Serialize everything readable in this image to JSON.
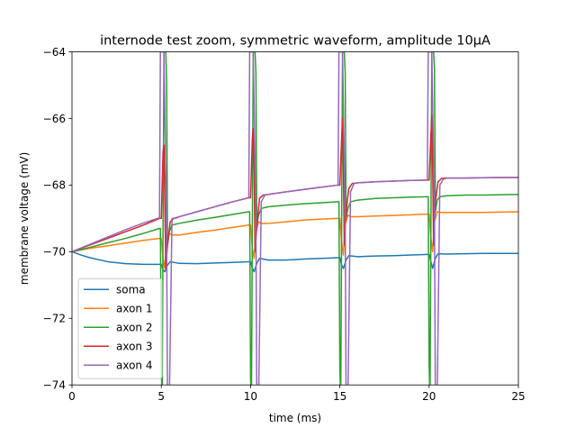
{
  "chart_data": {
    "type": "line",
    "title": "internode test zoom, symmetric waveform, amplitude 10μA",
    "xlabel": "time (ms)",
    "ylabel": "membrane voltage (mV)",
    "xlim": [
      0,
      25
    ],
    "ylim": [
      -74,
      -64
    ],
    "xticks": [
      0,
      5,
      10,
      15,
      20,
      25
    ],
    "xtick_labels": [
      "0",
      "5",
      "10",
      "15",
      "20",
      "25"
    ],
    "yticks": [
      -74,
      -72,
      -70,
      -68,
      -66,
      -64
    ],
    "ytick_labels": [
      "−74",
      "−72",
      "−70",
      "−68",
      "−66",
      "−64"
    ],
    "grid": false,
    "legend_position": "lower-left",
    "series": [
      {
        "name": "soma",
        "color": "#1f77b4",
        "x": [
          0,
          0.5,
          1,
          2,
          3,
          4,
          4.9,
          5.0,
          5.1,
          5.2,
          5.35,
          5.5,
          6,
          7,
          8,
          9,
          9.9,
          10.0,
          10.1,
          10.2,
          10.35,
          10.5,
          11,
          12,
          13,
          14,
          14.9,
          15.0,
          15.1,
          15.2,
          15.35,
          15.5,
          16,
          17,
          18,
          19,
          19.9,
          20.0,
          20.1,
          20.2,
          20.35,
          20.5,
          21,
          22,
          23,
          24,
          25
        ],
        "y": [
          -70.0,
          -70.1,
          -70.18,
          -70.3,
          -70.36,
          -70.38,
          -70.38,
          -70.38,
          -70.55,
          -70.6,
          -70.4,
          -70.3,
          -70.35,
          -70.36,
          -70.34,
          -70.32,
          -70.3,
          -70.3,
          -70.5,
          -70.6,
          -70.35,
          -70.2,
          -70.25,
          -70.25,
          -70.22,
          -70.2,
          -70.18,
          -70.18,
          -70.4,
          -70.5,
          -70.25,
          -70.12,
          -70.15,
          -70.13,
          -70.12,
          -70.1,
          -70.08,
          -70.08,
          -70.3,
          -70.5,
          -70.2,
          -70.06,
          -70.07,
          -70.06,
          -70.05,
          -70.05,
          -70.05
        ]
      },
      {
        "name": "axon 1",
        "color": "#ff7f0e",
        "x": [
          0,
          1,
          2,
          3,
          4,
          4.9,
          5.0,
          5.1,
          5.2,
          5.3,
          5.45,
          5.6,
          6,
          7,
          8,
          9,
          9.9,
          10.0,
          10.1,
          10.2,
          10.3,
          10.45,
          10.6,
          11,
          12,
          13,
          14,
          14.9,
          15.0,
          15.1,
          15.2,
          15.3,
          15.45,
          15.6,
          16,
          17,
          18,
          19,
          19.9,
          20.0,
          20.1,
          20.2,
          20.3,
          20.45,
          20.6,
          21,
          22,
          23,
          24,
          25
        ],
        "y": [
          -70.0,
          -69.9,
          -69.82,
          -69.74,
          -69.66,
          -69.6,
          -69.6,
          -70.2,
          -70.5,
          -69.7,
          -69.45,
          -69.5,
          -69.5,
          -69.42,
          -69.35,
          -69.27,
          -69.2,
          -69.2,
          -69.9,
          -70.2,
          -69.4,
          -69.1,
          -69.15,
          -69.15,
          -69.1,
          -69.05,
          -69.02,
          -69.0,
          -69.0,
          -69.7,
          -70.1,
          -69.2,
          -68.9,
          -68.95,
          -68.95,
          -68.93,
          -68.91,
          -68.89,
          -68.87,
          -68.87,
          -69.6,
          -70.0,
          -69.1,
          -68.8,
          -68.82,
          -68.82,
          -68.82,
          -68.82,
          -68.81,
          -68.8
        ]
      },
      {
        "name": "axon 2",
        "color": "#2ca02c",
        "x": [
          0,
          1,
          2,
          3,
          4,
          4.9,
          4.95,
          5.0,
          5.05,
          5.15,
          5.25,
          5.3,
          5.35,
          5.45,
          5.6,
          6,
          7,
          8,
          9,
          9.9,
          9.95,
          10.0,
          10.05,
          10.15,
          10.25,
          10.3,
          10.35,
          10.45,
          10.6,
          11,
          12,
          13,
          14,
          14.9,
          14.95,
          15.0,
          15.05,
          15.15,
          15.25,
          15.3,
          15.35,
          15.45,
          15.6,
          16,
          17,
          18,
          19,
          19.9,
          19.95,
          20.0,
          20.05,
          20.15,
          20.25,
          20.3,
          20.35,
          20.45,
          20.6,
          21,
          22,
          23,
          24,
          25
        ],
        "y": [
          -70.0,
          -69.87,
          -69.73,
          -69.6,
          -69.45,
          -69.3,
          -69.3,
          -73.5,
          -74.5,
          -64.0,
          -64.0,
          -64.8,
          -69.8,
          -69.4,
          -69.2,
          -69.15,
          -69.05,
          -68.97,
          -68.88,
          -68.8,
          -68.8,
          -73.8,
          -74.5,
          -64.0,
          -64.0,
          -64.6,
          -69.2,
          -68.9,
          -68.7,
          -68.65,
          -68.6,
          -68.56,
          -68.53,
          -68.5,
          -68.5,
          -73.5,
          -74.5,
          -64.0,
          -64.0,
          -64.6,
          -69.0,
          -68.7,
          -68.5,
          -68.45,
          -68.4,
          -68.38,
          -68.36,
          -68.35,
          -68.35,
          -73.4,
          -74.5,
          -64.0,
          -64.0,
          -64.5,
          -68.8,
          -68.45,
          -68.35,
          -68.32,
          -68.3,
          -68.3,
          -68.29,
          -68.28
        ]
      },
      {
        "name": "axon 3",
        "color": "#d62728",
        "x": [
          0,
          1,
          2,
          3,
          4,
          4.9,
          5.0,
          5.1,
          5.15,
          5.2,
          5.25,
          5.35,
          5.5,
          5.7,
          6,
          7,
          8,
          9,
          9.9,
          10.0,
          10.1,
          10.15,
          10.2,
          10.25,
          10.35,
          10.5,
          10.7,
          11,
          12,
          13,
          14,
          14.9,
          15.0,
          15.1,
          15.15,
          15.2,
          15.25,
          15.35,
          15.5,
          15.7,
          16,
          17,
          18,
          19,
          19.9,
          20.0,
          20.1,
          20.15,
          20.2,
          20.25,
          20.35,
          20.5,
          20.7,
          21,
          22,
          23,
          24,
          25
        ],
        "y": [
          -70.0,
          -69.8,
          -69.6,
          -69.4,
          -69.2,
          -69.0,
          -69.0,
          -67.0,
          -66.8,
          -68.5,
          -70.5,
          -69.8,
          -69.1,
          -69.0,
          -68.95,
          -68.8,
          -68.65,
          -68.5,
          -68.38,
          -68.38,
          -66.6,
          -66.3,
          -67.5,
          -70.0,
          -69.3,
          -68.4,
          -68.3,
          -68.28,
          -68.2,
          -68.13,
          -68.06,
          -68.0,
          -68.0,
          -66.6,
          -66.0,
          -67.5,
          -69.8,
          -68.8,
          -68.1,
          -67.95,
          -67.93,
          -67.9,
          -67.88,
          -67.86,
          -67.85,
          -67.85,
          -66.5,
          -65.9,
          -67.4,
          -69.8,
          -68.5,
          -67.9,
          -67.8,
          -67.79,
          -67.79,
          -67.78,
          -67.77,
          -67.77
        ]
      },
      {
        "name": "axon 4",
        "color": "#9467bd",
        "x": [
          0,
          1,
          2,
          3,
          4,
          4.9,
          4.95,
          5.0,
          5.05,
          5.15,
          5.3,
          5.35,
          5.45,
          5.6,
          5.8,
          6,
          7,
          8,
          9,
          9.9,
          9.95,
          10.0,
          10.05,
          10.15,
          10.3,
          10.35,
          10.45,
          10.6,
          10.8,
          11,
          12,
          13,
          14,
          14.9,
          14.95,
          15.0,
          15.05,
          15.15,
          15.3,
          15.35,
          15.45,
          15.6,
          15.8,
          16,
          17,
          18,
          19,
          19.9,
          19.95,
          20.0,
          20.05,
          20.15,
          20.3,
          20.35,
          20.45,
          20.6,
          20.8,
          21,
          22,
          23,
          24,
          25
        ],
        "y": [
          -70.0,
          -69.78,
          -69.56,
          -69.34,
          -69.14,
          -68.98,
          -64.0,
          -64.0,
          -64.0,
          -64.0,
          -69.5,
          -74.5,
          -74.5,
          -69.0,
          -69.0,
          -68.95,
          -68.8,
          -68.65,
          -68.5,
          -68.38,
          -64.0,
          -64.0,
          -64.0,
          -64.0,
          -69.0,
          -74.5,
          -74.5,
          -68.5,
          -68.3,
          -68.28,
          -68.2,
          -68.13,
          -68.06,
          -68.0,
          -64.0,
          -64.0,
          -64.0,
          -64.0,
          -68.9,
          -74.5,
          -74.5,
          -68.2,
          -67.95,
          -67.93,
          -67.9,
          -67.88,
          -67.86,
          -67.85,
          -64.0,
          -64.0,
          -64.0,
          -64.0,
          -68.8,
          -74.5,
          -74.5,
          -68.0,
          -67.82,
          -67.79,
          -67.79,
          -67.78,
          -67.77,
          -67.77
        ]
      }
    ]
  }
}
